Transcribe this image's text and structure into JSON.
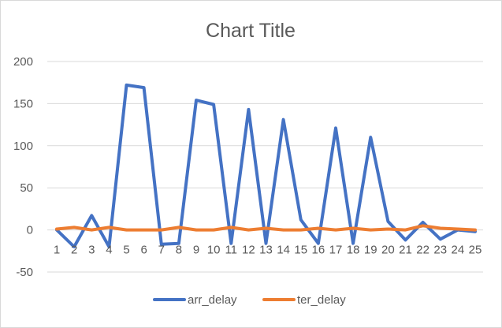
{
  "chart_data": {
    "type": "line",
    "title": "Chart Title",
    "categories": [
      "1",
      "2",
      "3",
      "4",
      "5",
      "6",
      "7",
      "8",
      "9",
      "10",
      "11",
      "12",
      "13",
      "14",
      "15",
      "16",
      "17",
      "18",
      "19",
      "20",
      "21",
      "22",
      "23",
      "24",
      "25"
    ],
    "ylim": [
      -50,
      200
    ],
    "yticks": [
      -50,
      0,
      50,
      100,
      150,
      200
    ],
    "grid": "horizontal",
    "legend_position": "bottom",
    "series": [
      {
        "name": "arr_delay",
        "color": "#4472C4",
        "values": [
          0,
          -20,
          17,
          -20,
          172,
          169,
          -17,
          -16,
          154,
          149,
          -16,
          143,
          -16,
          131,
          12,
          -16,
          121,
          -16,
          110,
          10,
          -12,
          9,
          -11,
          0,
          -2
        ]
      },
      {
        "name": "ter_delay",
        "color": "#ED7D31",
        "values": [
          1,
          3,
          0,
          3,
          0,
          0,
          0,
          3,
          0,
          0,
          3,
          0,
          2,
          0,
          0,
          2,
          0,
          2,
          0,
          1,
          0,
          5,
          2,
          1,
          0
        ]
      }
    ]
  }
}
